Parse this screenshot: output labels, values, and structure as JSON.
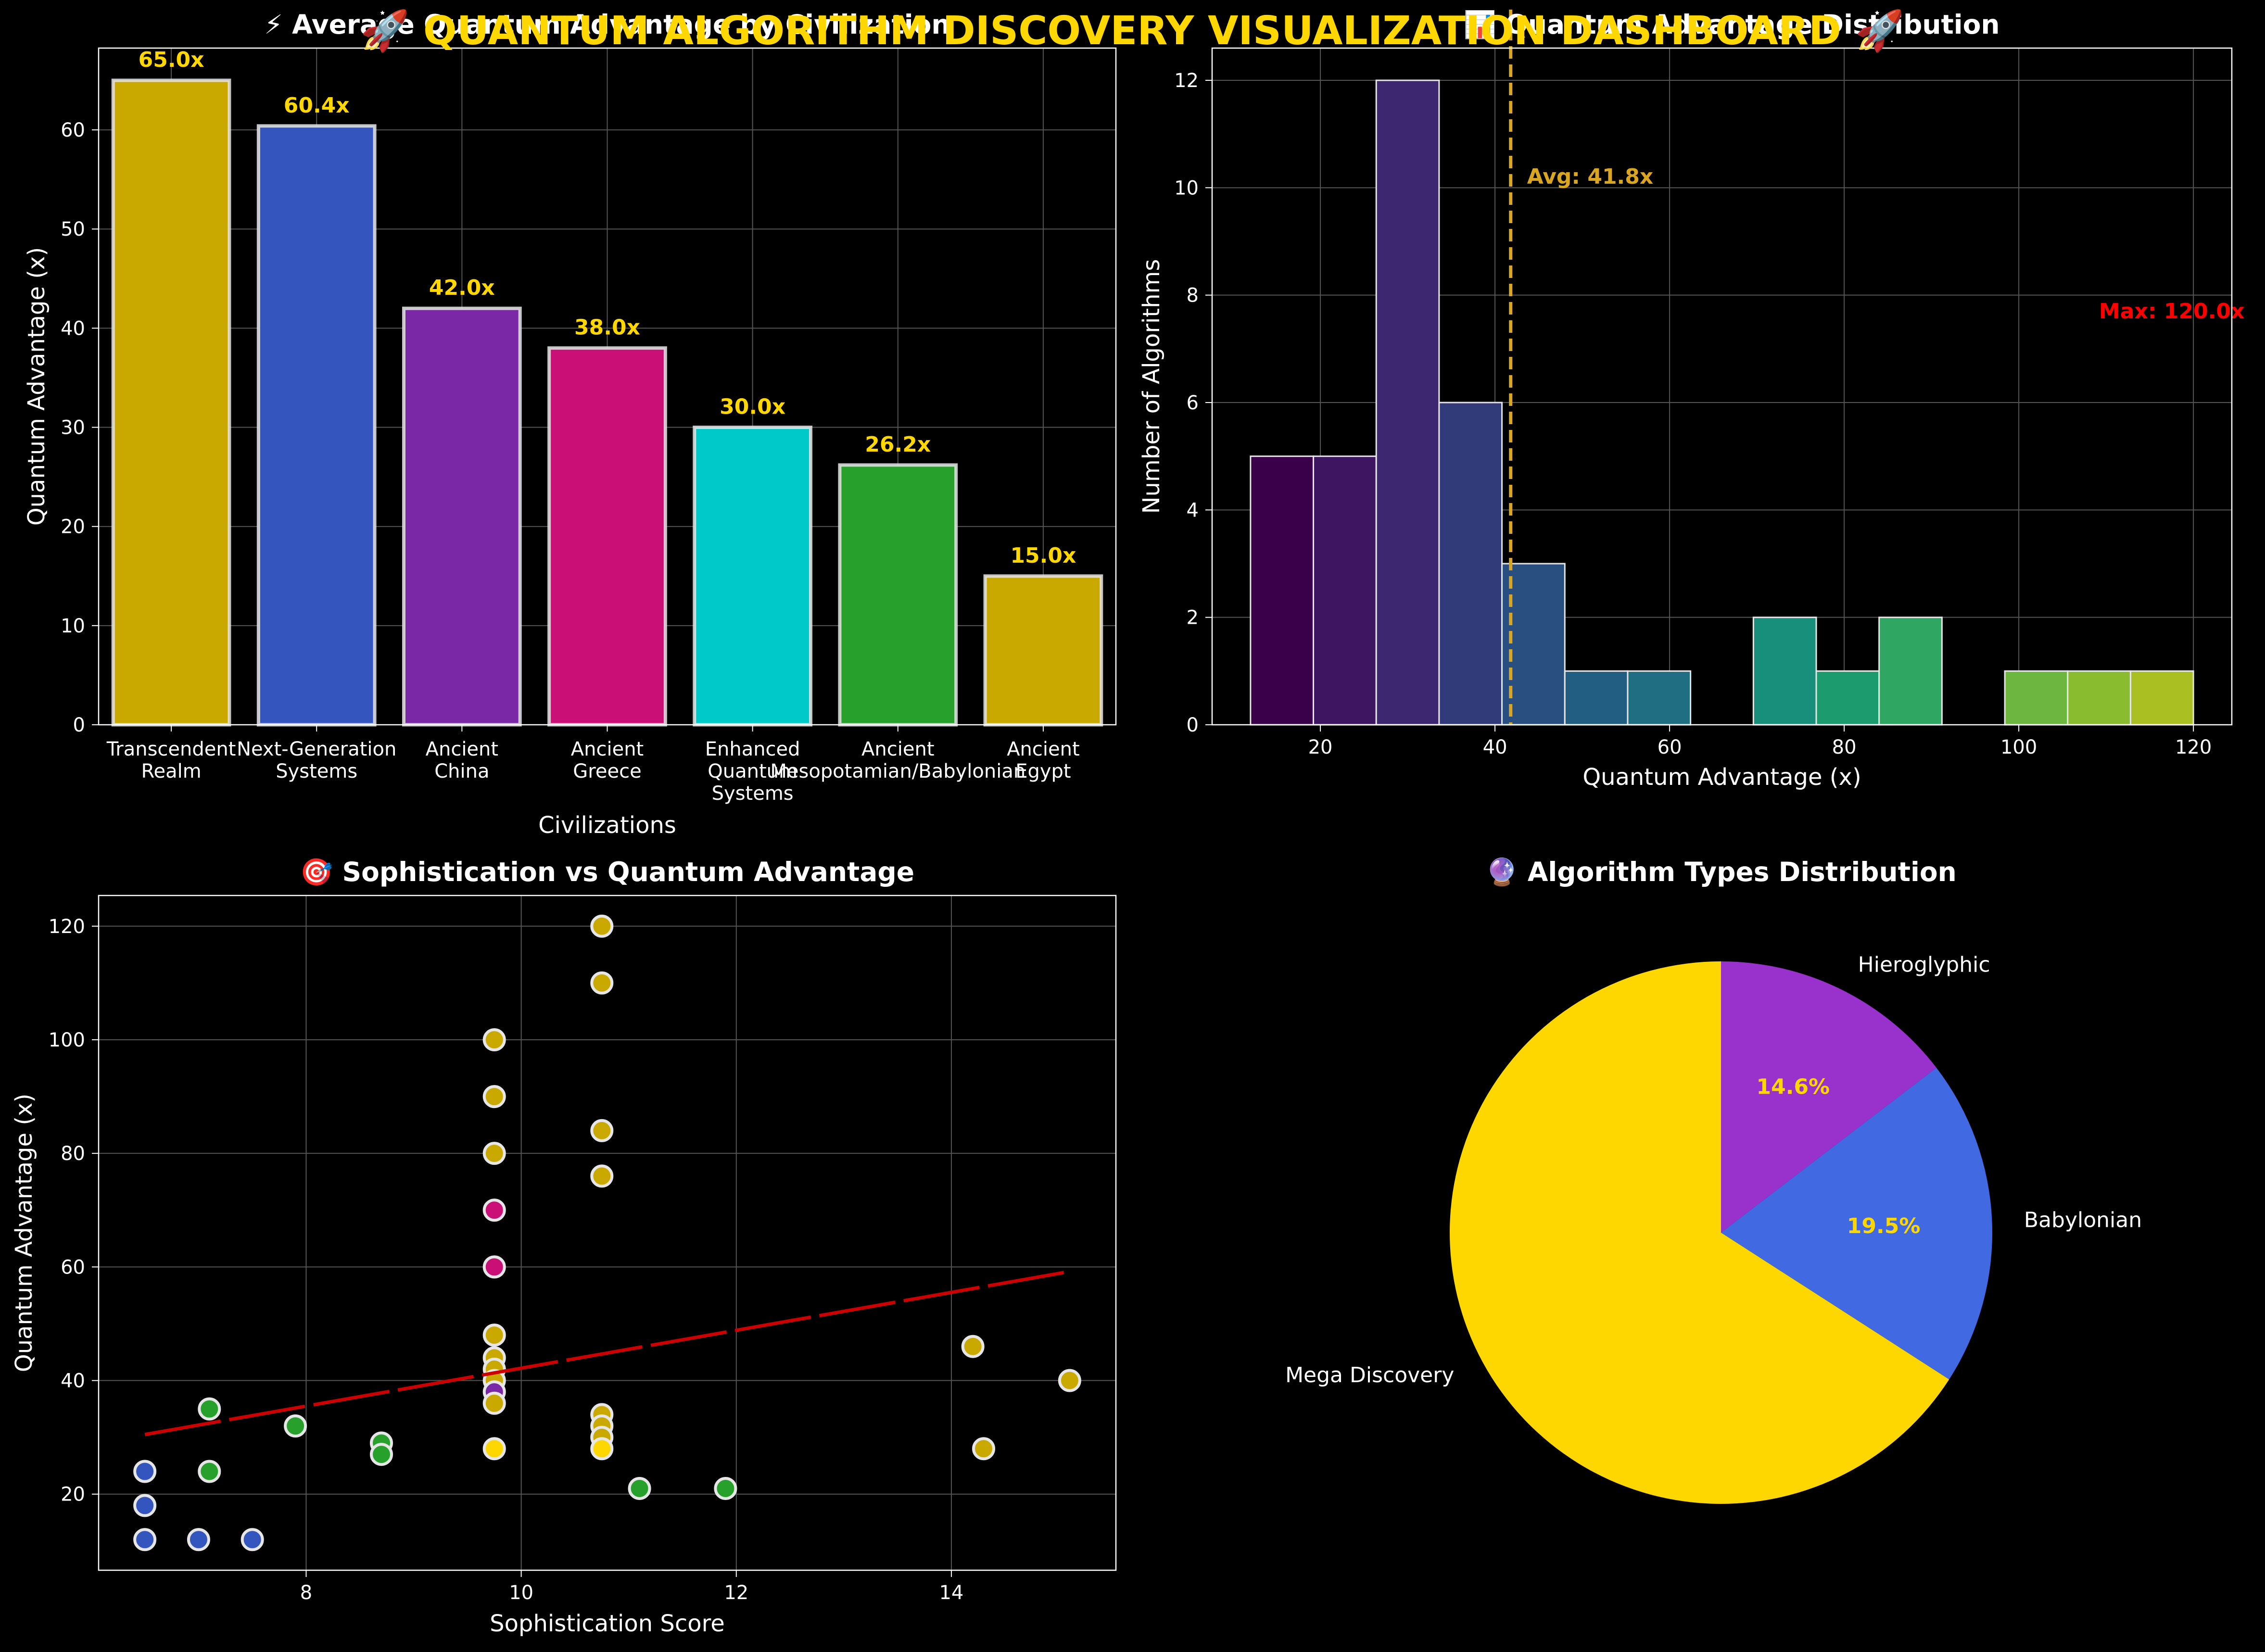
{
  "dashboard": {
    "title": "🚀 QUANTUM ALGORITHM DISCOVERY VISUALIZATION DASHBOARD 🚀"
  },
  "colors": {
    "background": "#000000",
    "title": "#FFD700",
    "text": "#FFFFFF",
    "grid": "#555555",
    "trend": "#CC0000",
    "avg_line": "#DAA520",
    "max_label": "#FF0000"
  },
  "chart_data": [
    {
      "id": "bar",
      "type": "bar",
      "title": "⚡ Average Quantum Advantage by Civilization",
      "xlabel": "Civilizations",
      "ylabel": "Quantum Advantage (x)",
      "ylim": [
        0,
        68.25
      ],
      "yticks": [
        0,
        10,
        20,
        30,
        40,
        50,
        60
      ],
      "grid": true,
      "categories": [
        [
          "Transcendent",
          "Realm"
        ],
        [
          "Next-Generation",
          "Systems"
        ],
        [
          "Ancient",
          "China"
        ],
        [
          "Ancient",
          "Greece"
        ],
        [
          "Enhanced",
          "Quantum",
          "Systems"
        ],
        [
          "Ancient",
          "Mesopotamian/Babylonian"
        ],
        [
          "Ancient",
          "Egypt"
        ]
      ],
      "values": [
        65.0,
        60.4,
        42.0,
        38.0,
        30.0,
        26.2,
        15.0
      ],
      "value_labels": [
        "65.0x",
        "60.4x",
        "42.0x",
        "38.0x",
        "30.0x",
        "26.2x",
        "15.0x"
      ],
      "bar_colors": [
        "#C9A800",
        "#3454BE",
        "#7B28A6",
        "#CA0F76",
        "#00C9C9",
        "#27A12C",
        "#C9A800"
      ]
    },
    {
      "id": "hist",
      "type": "bar",
      "title": "📊 Quantum Advantage Distribution",
      "xlabel": "Quantum Advantage (x)",
      "ylabel": "Number of Algorithms",
      "xlim": [
        7.6,
        124.4
      ],
      "ylim": [
        0,
        12.6
      ],
      "xticks": [
        20,
        40,
        60,
        80,
        100,
        120
      ],
      "yticks": [
        0,
        2,
        4,
        6,
        8,
        10,
        12
      ],
      "grid": true,
      "bin_edges": [
        12,
        19.2,
        26.4,
        33.6,
        40.8,
        48,
        55.2,
        62.4,
        69.6,
        76.8,
        84,
        91.2,
        98.4,
        105.6,
        112.8,
        120
      ],
      "counts": [
        5,
        5,
        12,
        6,
        3,
        1,
        1,
        0,
        2,
        1,
        2,
        0,
        1,
        1,
        1
      ],
      "bin_colors": [
        "#3A0049",
        "#3E1560",
        "#3D2770",
        "#323B7A",
        "#284F7F",
        "#225E81",
        "#1F6E82",
        "#1B7F7E",
        "#178F7A",
        "#1C9C6E",
        "#2FA762",
        "#4FB04E",
        "#6DB63F",
        "#8ABC2F",
        "#A9BF22"
      ],
      "avg_value": 41.8,
      "avg_label": "Avg: 41.8x",
      "max_label": "Max: 120.0x"
    },
    {
      "id": "scatter",
      "type": "scatter",
      "title": "🎯 Sophistication vs Quantum Advantage",
      "xlabel": "Sophistication Score",
      "ylabel": "Quantum Advantage (x)",
      "xlim": [
        6.07,
        15.53
      ],
      "ylim": [
        6.6,
        125.4
      ],
      "xticks": [
        8,
        10,
        12,
        14
      ],
      "yticks": [
        20,
        40,
        60,
        80,
        100,
        120
      ],
      "grid": true,
      "trend": {
        "x": [
          6.5,
          15.1
        ],
        "y": [
          30.5,
          59.2
        ]
      },
      "points": [
        {
          "x": 6.5,
          "y": 24,
          "color": "#3454BE"
        },
        {
          "x": 6.5,
          "y": 18,
          "color": "#3454BE"
        },
        {
          "x": 6.5,
          "y": 12,
          "color": "#3454BE"
        },
        {
          "x": 7.0,
          "y": 12,
          "color": "#3454BE"
        },
        {
          "x": 7.5,
          "y": 12,
          "color": "#3454BE"
        },
        {
          "x": 7.1,
          "y": 35,
          "color": "#27A12C"
        },
        {
          "x": 7.1,
          "y": 24,
          "color": "#27A12C"
        },
        {
          "x": 7.9,
          "y": 32,
          "color": "#27A12C"
        },
        {
          "x": 8.7,
          "y": 29,
          "color": "#27A12C"
        },
        {
          "x": 8.7,
          "y": 27,
          "color": "#27A12C"
        },
        {
          "x": 11.1,
          "y": 21,
          "color": "#27A12C"
        },
        {
          "x": 11.9,
          "y": 21,
          "color": "#27A12C"
        },
        {
          "x": 9.75,
          "y": 100,
          "color": "#C9A800"
        },
        {
          "x": 9.75,
          "y": 90,
          "color": "#C9A800"
        },
        {
          "x": 9.75,
          "y": 80,
          "color": "#C9A800"
        },
        {
          "x": 9.75,
          "y": 70,
          "color": "#CA0F76"
        },
        {
          "x": 9.75,
          "y": 60,
          "color": "#CA0F76"
        },
        {
          "x": 9.75,
          "y": 48,
          "color": "#C9A800"
        },
        {
          "x": 9.75,
          "y": 44,
          "color": "#C9A800"
        },
        {
          "x": 9.75,
          "y": 42,
          "color": "#C9A800"
        },
        {
          "x": 9.75,
          "y": 40,
          "color": "#C9A800"
        },
        {
          "x": 9.75,
          "y": 38,
          "color": "#7B28A6"
        },
        {
          "x": 9.75,
          "y": 36,
          "color": "#C9A800"
        },
        {
          "x": 9.75,
          "y": 28,
          "color": "#FFD700"
        },
        {
          "x": 10.75,
          "y": 120,
          "color": "#C9A800"
        },
        {
          "x": 10.75,
          "y": 110,
          "color": "#C9A800"
        },
        {
          "x": 10.75,
          "y": 84,
          "color": "#C9A800"
        },
        {
          "x": 10.75,
          "y": 76,
          "color": "#C9A800"
        },
        {
          "x": 10.75,
          "y": 34,
          "color": "#C9A800"
        },
        {
          "x": 10.75,
          "y": 32,
          "color": "#C9A800"
        },
        {
          "x": 10.75,
          "y": 30,
          "color": "#C9A800"
        },
        {
          "x": 10.75,
          "y": 28,
          "color": "#FFD700"
        },
        {
          "x": 14.2,
          "y": 46,
          "color": "#C9A800"
        },
        {
          "x": 14.3,
          "y": 28,
          "color": "#C9A800"
        },
        {
          "x": 15.1,
          "y": 40,
          "color": "#C9A800"
        }
      ]
    },
    {
      "id": "pie",
      "type": "pie",
      "title": "🔮 Algorithm Types Distribution",
      "slices": [
        {
          "label": "Hieroglyphic",
          "value": 14.6,
          "pct_label": "14.6%",
          "color": "#9932CC"
        },
        {
          "label": "Babylonian",
          "value": 19.5,
          "pct_label": "19.5%",
          "color": "#4169E1"
        },
        {
          "label": "Mega Discovery",
          "value": 65.9,
          "pct_label": "",
          "color": "#FFD700"
        }
      ],
      "start_angle_deg": 90,
      "direction": "clockwise"
    }
  ]
}
